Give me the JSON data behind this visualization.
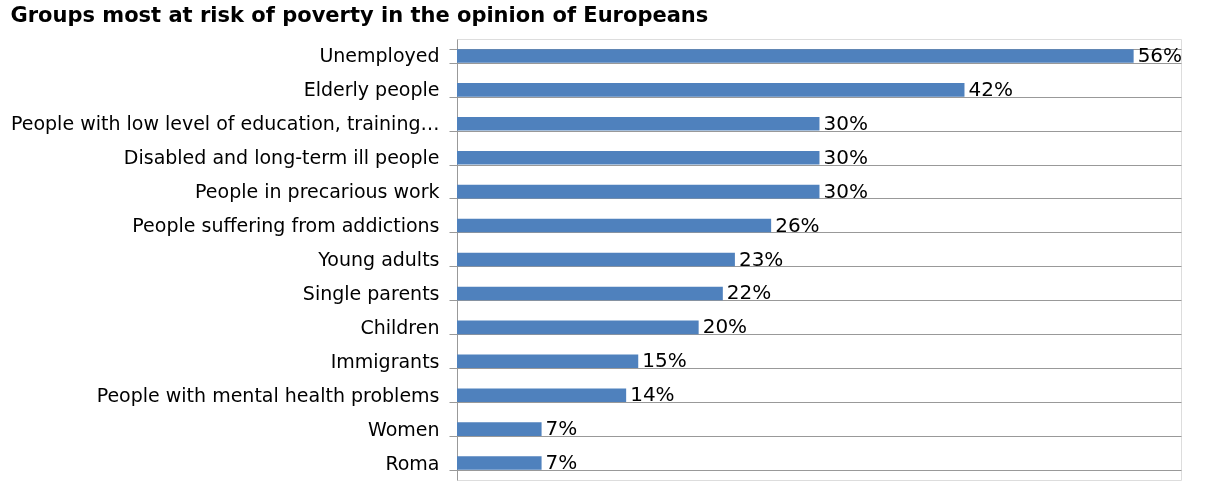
{
  "chart_data": {
    "type": "bar",
    "orientation": "horizontal",
    "title": "Groups most at risk of poverty in the opinion of Europeans",
    "categories": [
      "Unemployed",
      "Elderly people",
      "People with low level of education, training…",
      "Disabled and long-term ill people",
      "People in precarious work",
      "People suffering from addictions",
      "Young adults ",
      "Single parents",
      "Children ",
      "Immigrants",
      "People with mental health problems",
      "Women",
      "Roma"
    ],
    "values": [
      56,
      42,
      30,
      30,
      30,
      26,
      23,
      22,
      20,
      15,
      14,
      7,
      7
    ],
    "value_labels": [
      "56%",
      "42%",
      "30%",
      "30%",
      "30%",
      "26%",
      "23%",
      "22%",
      "20%",
      "15%",
      "14%",
      "7%",
      "7%"
    ],
    "color": "#4f81bd",
    "grid": "y",
    "tick_labels": "y"
  }
}
